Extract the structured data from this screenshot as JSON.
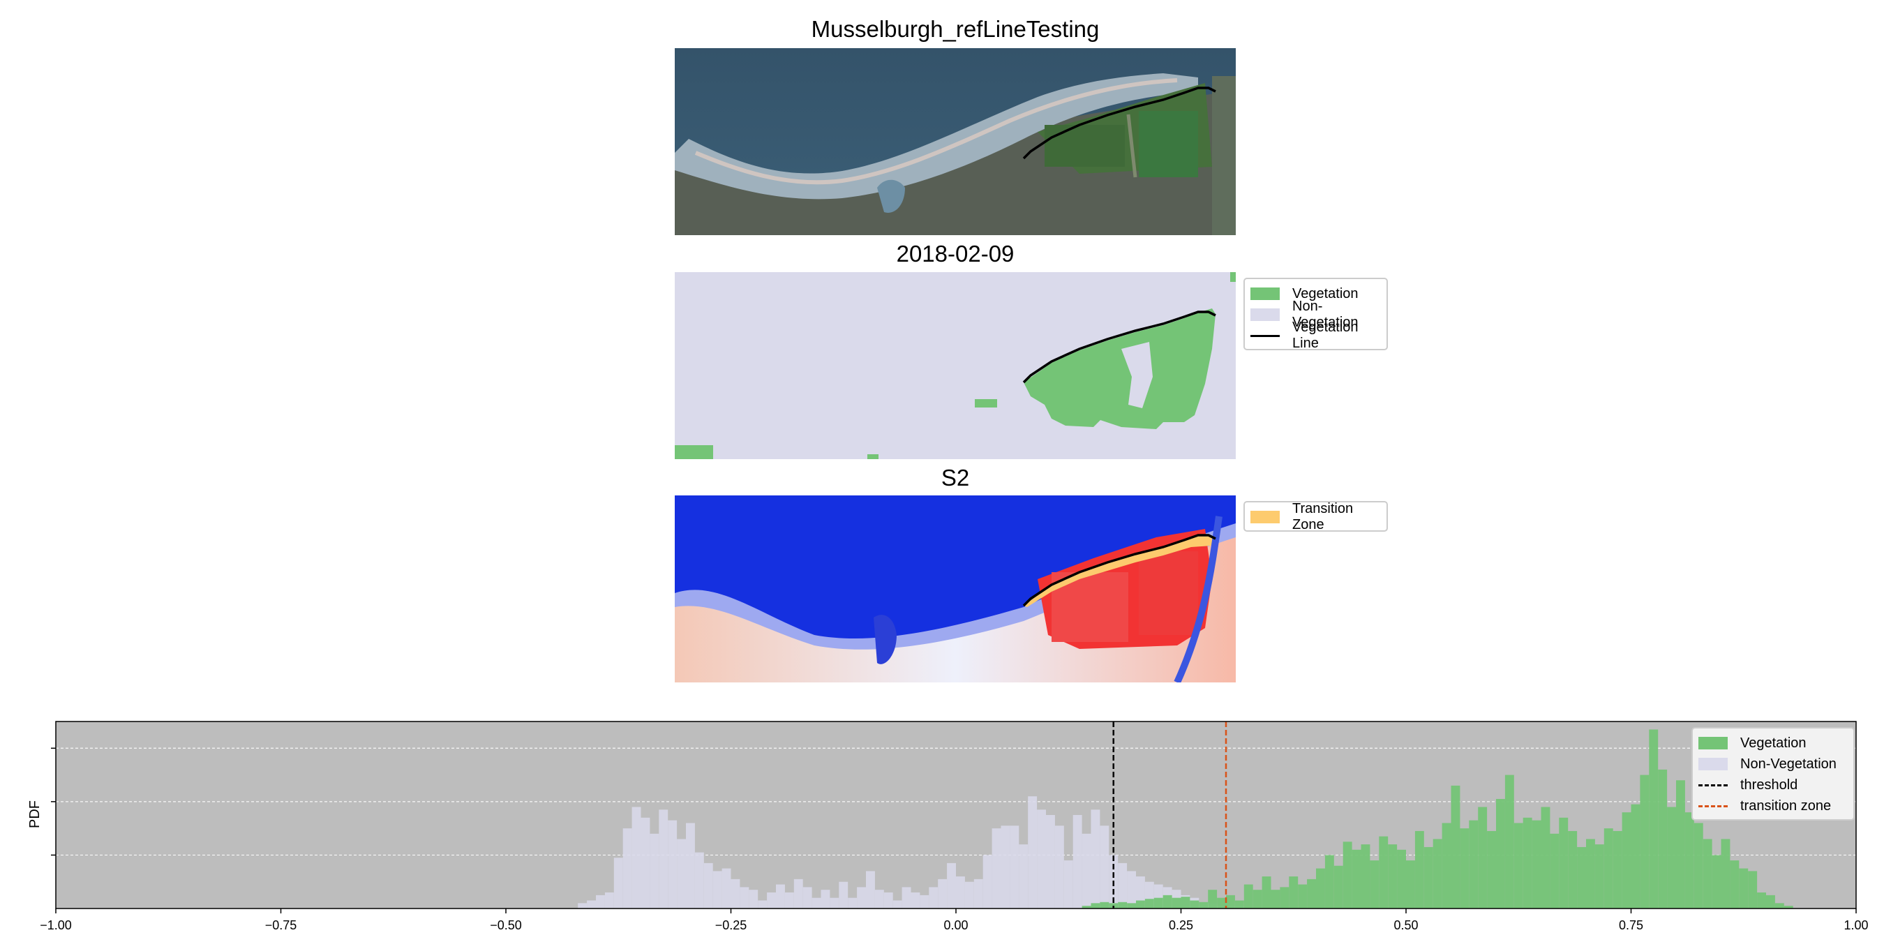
{
  "titles": {
    "rgb": "Musselburgh_refLineTesting",
    "classification": "2018-02-09",
    "index": "S2"
  },
  "legends": {
    "classification": [
      {
        "label": "Vegetation",
        "color": "#74c476",
        "kind": "patch"
      },
      {
        "label": "Non-Vegetation",
        "color": "#dadaeb",
        "kind": "patch"
      },
      {
        "label": "Vegetation Line",
        "color": "#000000",
        "kind": "line"
      }
    ],
    "index": [
      {
        "label": "Transition Zone",
        "color": "#fdcb6e",
        "kind": "patch"
      }
    ]
  },
  "colors": {
    "vegetation": "#74c476",
    "non_vegetation": "#dadaeb",
    "transition_zone": "#fdcb6e",
    "threshold": "#000000",
    "transition_line": "#d95319",
    "hist_background": "#bdbdbd",
    "water": "#37566b"
  },
  "chart_data": {
    "type": "histogram",
    "ylabel": "PDF",
    "xlim": [
      -1.0,
      1.0
    ],
    "xticks": [
      "−1.00",
      "−0.75",
      "−0.50",
      "−0.25",
      "0.00",
      "0.25",
      "0.50",
      "0.75",
      "1.00"
    ],
    "xtick_values": [
      -1.0,
      -0.75,
      -0.5,
      -0.25,
      0.0,
      0.25,
      0.5,
      0.75,
      1.0
    ],
    "ylim": [
      0,
      3.5
    ],
    "ytick_values": [
      1,
      2,
      3
    ],
    "grid": "y",
    "legend_position": "top-right",
    "bin_width": 0.01,
    "threshold": 0.175,
    "transition_zone": 0.3,
    "series": [
      {
        "name": "Vegetation",
        "color": "#74c476",
        "bins": [
          [
            0.14,
            0.05
          ],
          [
            0.15,
            0.1
          ],
          [
            0.16,
            0.12
          ],
          [
            0.17,
            0.1
          ],
          [
            0.18,
            0.12
          ],
          [
            0.19,
            0.1
          ],
          [
            0.2,
            0.15
          ],
          [
            0.21,
            0.18
          ],
          [
            0.22,
            0.2
          ],
          [
            0.23,
            0.25
          ],
          [
            0.24,
            0.2
          ],
          [
            0.25,
            0.22
          ],
          [
            0.26,
            0.15
          ],
          [
            0.27,
            0.12
          ],
          [
            0.28,
            0.35
          ],
          [
            0.29,
            0.2
          ],
          [
            0.3,
            0.25
          ],
          [
            0.31,
            0.15
          ],
          [
            0.32,
            0.45
          ],
          [
            0.33,
            0.35
          ],
          [
            0.34,
            0.6
          ],
          [
            0.35,
            0.35
          ],
          [
            0.36,
            0.4
          ],
          [
            0.37,
            0.6
          ],
          [
            0.38,
            0.45
          ],
          [
            0.39,
            0.55
          ],
          [
            0.4,
            0.75
          ],
          [
            0.41,
            1.0
          ],
          [
            0.42,
            0.8
          ],
          [
            0.43,
            1.25
          ],
          [
            0.44,
            1.1
          ],
          [
            0.45,
            1.2
          ],
          [
            0.46,
            0.9
          ],
          [
            0.47,
            1.35
          ],
          [
            0.48,
            1.2
          ],
          [
            0.49,
            1.1
          ],
          [
            0.5,
            0.9
          ],
          [
            0.51,
            1.45
          ],
          [
            0.52,
            1.15
          ],
          [
            0.53,
            1.3
          ],
          [
            0.54,
            1.6
          ],
          [
            0.55,
            2.3
          ],
          [
            0.56,
            1.5
          ],
          [
            0.57,
            1.65
          ],
          [
            0.58,
            1.9
          ],
          [
            0.59,
            1.45
          ],
          [
            0.6,
            2.05
          ],
          [
            0.61,
            2.5
          ],
          [
            0.62,
            1.6
          ],
          [
            0.63,
            1.7
          ],
          [
            0.64,
            1.65
          ],
          [
            0.65,
            1.9
          ],
          [
            0.66,
            1.4
          ],
          [
            0.67,
            1.7
          ],
          [
            0.68,
            1.45
          ],
          [
            0.69,
            1.15
          ],
          [
            0.7,
            1.3
          ],
          [
            0.71,
            1.2
          ],
          [
            0.72,
            1.5
          ],
          [
            0.73,
            1.45
          ],
          [
            0.74,
            1.8
          ],
          [
            0.75,
            1.95
          ],
          [
            0.76,
            2.5
          ],
          [
            0.77,
            3.35
          ],
          [
            0.78,
            2.6
          ],
          [
            0.79,
            1.9
          ],
          [
            0.8,
            2.4
          ],
          [
            0.81,
            1.8
          ],
          [
            0.82,
            1.6
          ],
          [
            0.83,
            1.3
          ],
          [
            0.84,
            1.0
          ],
          [
            0.85,
            1.3
          ],
          [
            0.86,
            0.9
          ],
          [
            0.87,
            0.75
          ],
          [
            0.88,
            0.7
          ],
          [
            0.89,
            0.3
          ],
          [
            0.9,
            0.25
          ],
          [
            0.91,
            0.1
          ],
          [
            0.92,
            0.05
          ]
        ]
      },
      {
        "name": "Non-Vegetation",
        "color": "#dadaeb",
        "bins": [
          [
            -0.42,
            0.1
          ],
          [
            -0.41,
            0.15
          ],
          [
            -0.4,
            0.25
          ],
          [
            -0.39,
            0.3
          ],
          [
            -0.38,
            0.95
          ],
          [
            -0.37,
            1.5
          ],
          [
            -0.36,
            1.9
          ],
          [
            -0.35,
            1.7
          ],
          [
            -0.34,
            1.4
          ],
          [
            -0.33,
            1.85
          ],
          [
            -0.32,
            1.65
          ],
          [
            -0.31,
            1.3
          ],
          [
            -0.3,
            1.6
          ],
          [
            -0.29,
            1.05
          ],
          [
            -0.28,
            0.85
          ],
          [
            -0.27,
            0.7
          ],
          [
            -0.26,
            0.75
          ],
          [
            -0.25,
            0.55
          ],
          [
            -0.24,
            0.4
          ],
          [
            -0.23,
            0.35
          ],
          [
            -0.22,
            0.15
          ],
          [
            -0.21,
            0.3
          ],
          [
            -0.2,
            0.45
          ],
          [
            -0.19,
            0.3
          ],
          [
            -0.18,
            0.55
          ],
          [
            -0.17,
            0.4
          ],
          [
            -0.16,
            0.2
          ],
          [
            -0.15,
            0.35
          ],
          [
            -0.14,
            0.2
          ],
          [
            -0.13,
            0.5
          ],
          [
            -0.12,
            0.2
          ],
          [
            -0.11,
            0.4
          ],
          [
            -0.1,
            0.7
          ],
          [
            -0.09,
            0.35
          ],
          [
            -0.08,
            0.3
          ],
          [
            -0.07,
            0.15
          ],
          [
            -0.06,
            0.4
          ],
          [
            -0.05,
            0.3
          ],
          [
            -0.04,
            0.25
          ],
          [
            -0.03,
            0.4
          ],
          [
            -0.02,
            0.55
          ],
          [
            -0.01,
            0.85
          ],
          [
            0.0,
            0.6
          ],
          [
            0.01,
            0.5
          ],
          [
            0.02,
            0.55
          ],
          [
            0.03,
            1.0
          ],
          [
            0.04,
            1.5
          ],
          [
            0.05,
            1.55
          ],
          [
            0.06,
            1.55
          ],
          [
            0.07,
            1.2
          ],
          [
            0.08,
            2.1
          ],
          [
            0.09,
            1.85
          ],
          [
            0.1,
            1.75
          ],
          [
            0.11,
            1.55
          ],
          [
            0.12,
            0.9
          ],
          [
            0.13,
            1.75
          ],
          [
            0.14,
            1.4
          ],
          [
            0.15,
            1.85
          ],
          [
            0.16,
            1.55
          ],
          [
            0.17,
            1.0
          ],
          [
            0.18,
            0.85
          ],
          [
            0.19,
            0.7
          ],
          [
            0.2,
            0.6
          ],
          [
            0.21,
            0.5
          ],
          [
            0.22,
            0.45
          ],
          [
            0.23,
            0.4
          ],
          [
            0.24,
            0.35
          ],
          [
            0.25,
            0.25
          ],
          [
            0.26,
            0.2
          ],
          [
            0.27,
            0.1
          ],
          [
            0.28,
            0.1
          ],
          [
            0.29,
            0.05
          ],
          [
            0.3,
            0.05
          ],
          [
            0.31,
            0.05
          ]
        ]
      }
    ],
    "line_series": [
      {
        "name": "threshold",
        "style": "dashed",
        "color": "#000000"
      },
      {
        "name": "transition zone",
        "style": "dashed",
        "color": "#d95319"
      }
    ]
  }
}
